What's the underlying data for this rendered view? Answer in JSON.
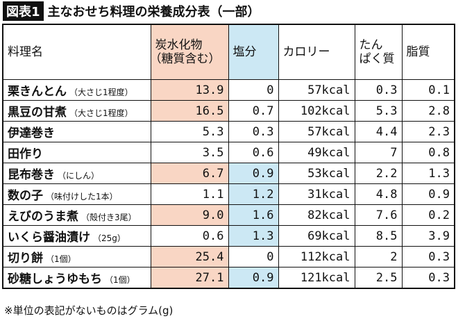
{
  "header": {
    "badge": "図表1",
    "title": "主なおせち料理の栄養成分表（一部）"
  },
  "table": {
    "columns": [
      {
        "lines": [
          "料理名"
        ],
        "fill": null
      },
      {
        "lines": [
          "炭水化物",
          "（糖質含む）"
        ],
        "fill": "#f9d6c4"
      },
      {
        "lines": [
          "塩分"
        ],
        "fill": "#cce8f4"
      },
      {
        "lines": [
          "カロリー"
        ],
        "fill": null
      },
      {
        "lines": [
          "たん",
          "ぱく質"
        ],
        "fill": null
      },
      {
        "lines": [
          "脂質"
        ],
        "fill": null
      }
    ],
    "rows": [
      {
        "name": "栗きんとん",
        "note": "（大さじ1程度）",
        "cells": [
          "13.9",
          "0",
          "57kcal",
          "0.3",
          "0.1"
        ],
        "fills": [
          "#f9d6c4",
          null,
          null,
          null,
          null
        ]
      },
      {
        "name": "黒豆の甘煮",
        "note": "（大さじ1程度）",
        "cells": [
          "16.5",
          "0.7",
          "102kcal",
          "5.3",
          "2.8"
        ],
        "fills": [
          "#f9d6c4",
          null,
          null,
          null,
          null
        ]
      },
      {
        "name": "伊達巻き",
        "note": null,
        "cells": [
          "5.3",
          "0.3",
          "57kcal",
          "4.4",
          "2.3"
        ],
        "fills": [
          null,
          null,
          null,
          null,
          null
        ]
      },
      {
        "name": "田作り",
        "note": null,
        "cells": [
          "3.5",
          "0.6",
          "49kcal",
          "7",
          "0.8"
        ],
        "fills": [
          null,
          null,
          null,
          null,
          null
        ]
      },
      {
        "name": "昆布巻き",
        "note": "（にしん）",
        "cells": [
          "6.7",
          "0.9",
          "53kcal",
          "2.2",
          "1.3"
        ],
        "fills": [
          "#f9d6c4",
          "#cce8f4",
          null,
          null,
          null
        ]
      },
      {
        "name": "数の子",
        "note": "（味付けした1本）",
        "cells": [
          "1.1",
          "1.2",
          "31kcal",
          "4.8",
          "0.9"
        ],
        "fills": [
          null,
          "#cce8f4",
          null,
          null,
          null
        ]
      },
      {
        "name": "えびのうま煮",
        "note": "（殻付き3尾）",
        "cells": [
          "9.0",
          "1.6",
          "82kcal",
          "7.6",
          "0.2"
        ],
        "fills": [
          "#f9d6c4",
          "#cce8f4",
          null,
          null,
          null
        ]
      },
      {
        "name": "いくら醤油漬け",
        "note": "（25g）",
        "cells": [
          "0.6",
          "1.3",
          "69kcal",
          "8.5",
          "3.9"
        ],
        "fills": [
          null,
          "#cce8f4",
          null,
          null,
          null
        ]
      },
      {
        "name": "切り餅",
        "note": "（1個）",
        "cells": [
          "25.4",
          "0",
          "112kcal",
          "2",
          "0.3"
        ],
        "fills": [
          "#f9d6c4",
          null,
          null,
          null,
          null
        ]
      },
      {
        "name": "砂糖しょうゆもち",
        "note": "（1個）",
        "cells": [
          "27.1",
          "0.9",
          "121kcal",
          "2.5",
          "0.3"
        ],
        "fills": [
          "#f9d6c4",
          "#cce8f4",
          null,
          null,
          null
        ]
      }
    ]
  },
  "footnote": "※単位の表記がないものはグラム(g)"
}
